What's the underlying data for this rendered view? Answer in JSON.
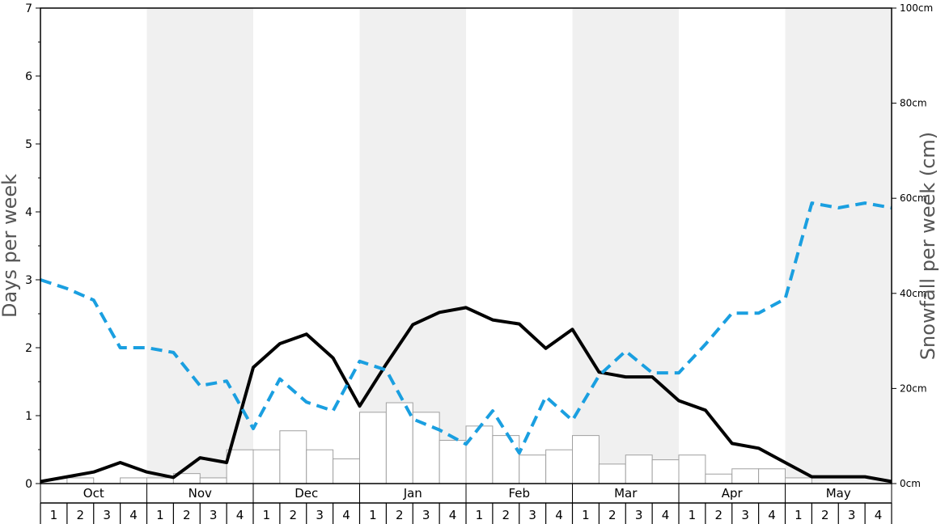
{
  "chart_data": {
    "type": "bar",
    "ylabel_left": "Days per week",
    "ylabel_right": "Snowfall per week (cm)",
    "left_axis": {
      "ylim": [
        0,
        7
      ],
      "ticks": [
        "0",
        "1",
        "2",
        "3",
        "4",
        "5",
        "6",
        "7"
      ]
    },
    "right_axis": {
      "ylim": [
        0,
        100
      ],
      "ticks": [
        "0cm",
        "20cm",
        "40cm",
        "60cm",
        "80cm",
        "100cm"
      ]
    },
    "months": [
      "Oct",
      "Nov",
      "Dec",
      "Jan",
      "Feb",
      "Mar",
      "Apr",
      "May"
    ],
    "week_labels": [
      "1",
      "2",
      "3",
      "4"
    ],
    "colors": {
      "snowfall_bars": "#ffffff",
      "snowfall_bar_border": "#a0a0a0",
      "solid_line": "#000000",
      "dashed_line": "#1a9fe0",
      "shaded_month": "#f0f0f0"
    },
    "series": [
      {
        "kind": "bar",
        "axis": "right",
        "values": [
          0,
          1.2,
          0,
          1.2,
          1.2,
          2.1,
          1.2,
          7.1,
          7.1,
          11.1,
          7.1,
          5.2,
          15.0,
          17.0,
          15.0,
          9.1,
          12.1,
          10.1,
          6.0,
          7.1,
          10.1,
          4.1,
          6.0,
          5.0,
          6.0,
          2.0,
          3.1,
          3.1,
          1.2,
          0,
          0,
          0
        ]
      },
      {
        "kind": "line",
        "style": "solid",
        "axis": "left",
        "values": [
          0.03,
          0.1,
          0.17,
          0.31,
          0.17,
          0.09,
          0.38,
          0.31,
          1.71,
          2.06,
          2.2,
          1.85,
          1.14,
          1.76,
          2.34,
          2.52,
          2.59,
          2.41,
          2.35,
          1.99,
          2.27,
          1.64,
          1.57,
          1.57,
          1.22,
          1.08,
          0.59,
          0.52,
          0.31,
          0.1,
          0.1,
          0.1,
          0.03
        ]
      },
      {
        "kind": "line",
        "style": "dashed",
        "axis": "left",
        "values": [
          3.0,
          2.87,
          2.7,
          2.0,
          2.0,
          1.93,
          1.44,
          1.51,
          0.81,
          1.54,
          1.2,
          1.07,
          1.8,
          1.67,
          0.95,
          0.79,
          0.58,
          1.07,
          0.45,
          1.28,
          0.93,
          1.59,
          1.95,
          1.63,
          1.63,
          2.05,
          2.51,
          2.51,
          2.72,
          4.13,
          4.06,
          4.13,
          4.06
        ]
      }
    ]
  }
}
